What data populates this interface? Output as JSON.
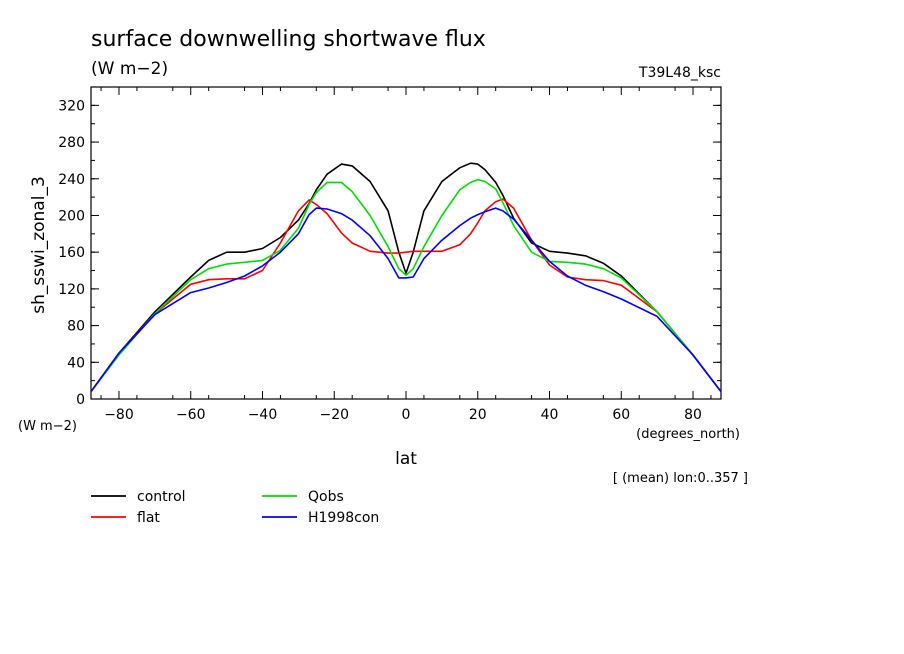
{
  "chart_data": {
    "type": "line",
    "title": "surface downwelling shortwave flux",
    "units_label": "(W m−2)",
    "run_label": "T39L48_ksc",
    "ylabel": "sh_sswi_zonal_3",
    "y_units_label": "(W m−2)",
    "xlabel": "lat",
    "x_units_label": "(degrees_north)",
    "note": "[ (mean) lon:0..357 ]",
    "xlim": [
      -87.8,
      87.8
    ],
    "ylim": [
      0,
      340
    ],
    "x_ticks": [
      -80,
      -60,
      -40,
      -20,
      0,
      20,
      40,
      60,
      80
    ],
    "y_ticks": [
      0,
      40,
      80,
      120,
      160,
      200,
      240,
      280,
      320
    ],
    "grid": false,
    "legend_position": "bottom-left",
    "x": [
      -87.8,
      -80,
      -70,
      -60,
      -55,
      -50,
      -45,
      -40,
      -35,
      -30,
      -27,
      -25,
      -22,
      -18,
      -15,
      -10,
      -5,
      -2,
      0,
      2,
      5,
      10,
      15,
      18,
      20,
      22,
      25,
      27,
      30,
      35,
      40,
      45,
      50,
      55,
      60,
      70,
      80,
      87.8
    ],
    "series": [
      {
        "name": "control",
        "color": "#000000",
        "values": [
          8,
          50,
          95,
          133,
          151,
          160,
          160,
          164,
          176,
          195,
          213,
          228,
          245,
          256,
          254,
          237,
          205,
          160,
          137,
          160,
          205,
          237,
          252,
          257,
          256,
          250,
          236,
          222,
          197,
          170,
          161,
          159,
          156,
          148,
          134,
          95,
          48,
          8
        ]
      },
      {
        "name": "flat",
        "color": "#ff0000",
        "values": [
          8,
          50,
          93,
          125,
          130,
          131,
          131,
          140,
          170,
          205,
          217,
          212,
          202,
          181,
          170,
          161,
          159,
          159,
          160,
          161,
          161,
          161,
          168,
          180,
          192,
          205,
          215,
          218,
          208,
          173,
          146,
          133,
          130,
          129,
          124,
          95,
          48,
          8
        ]
      },
      {
        "name": "Qobs",
        "color": "#00e000",
        "values": [
          8,
          48,
          93,
          130,
          142,
          147,
          149,
          151,
          162,
          186,
          212,
          225,
          236,
          236,
          226,
          200,
          166,
          142,
          135,
          142,
          166,
          200,
          228,
          236,
          239,
          237,
          229,
          214,
          189,
          160,
          150,
          149,
          147,
          142,
          132,
          95,
          48,
          8
        ]
      },
      {
        "name": "H1998con",
        "color": "#0000ff",
        "values": [
          8,
          50,
          92,
          116,
          121,
          127,
          134,
          145,
          160,
          180,
          201,
          208,
          207,
          202,
          195,
          178,
          153,
          132,
          132,
          133,
          153,
          173,
          189,
          197,
          201,
          204,
          208,
          205,
          196,
          173,
          150,
          134,
          124,
          117,
          109,
          90,
          48,
          8
        ]
      }
    ]
  }
}
